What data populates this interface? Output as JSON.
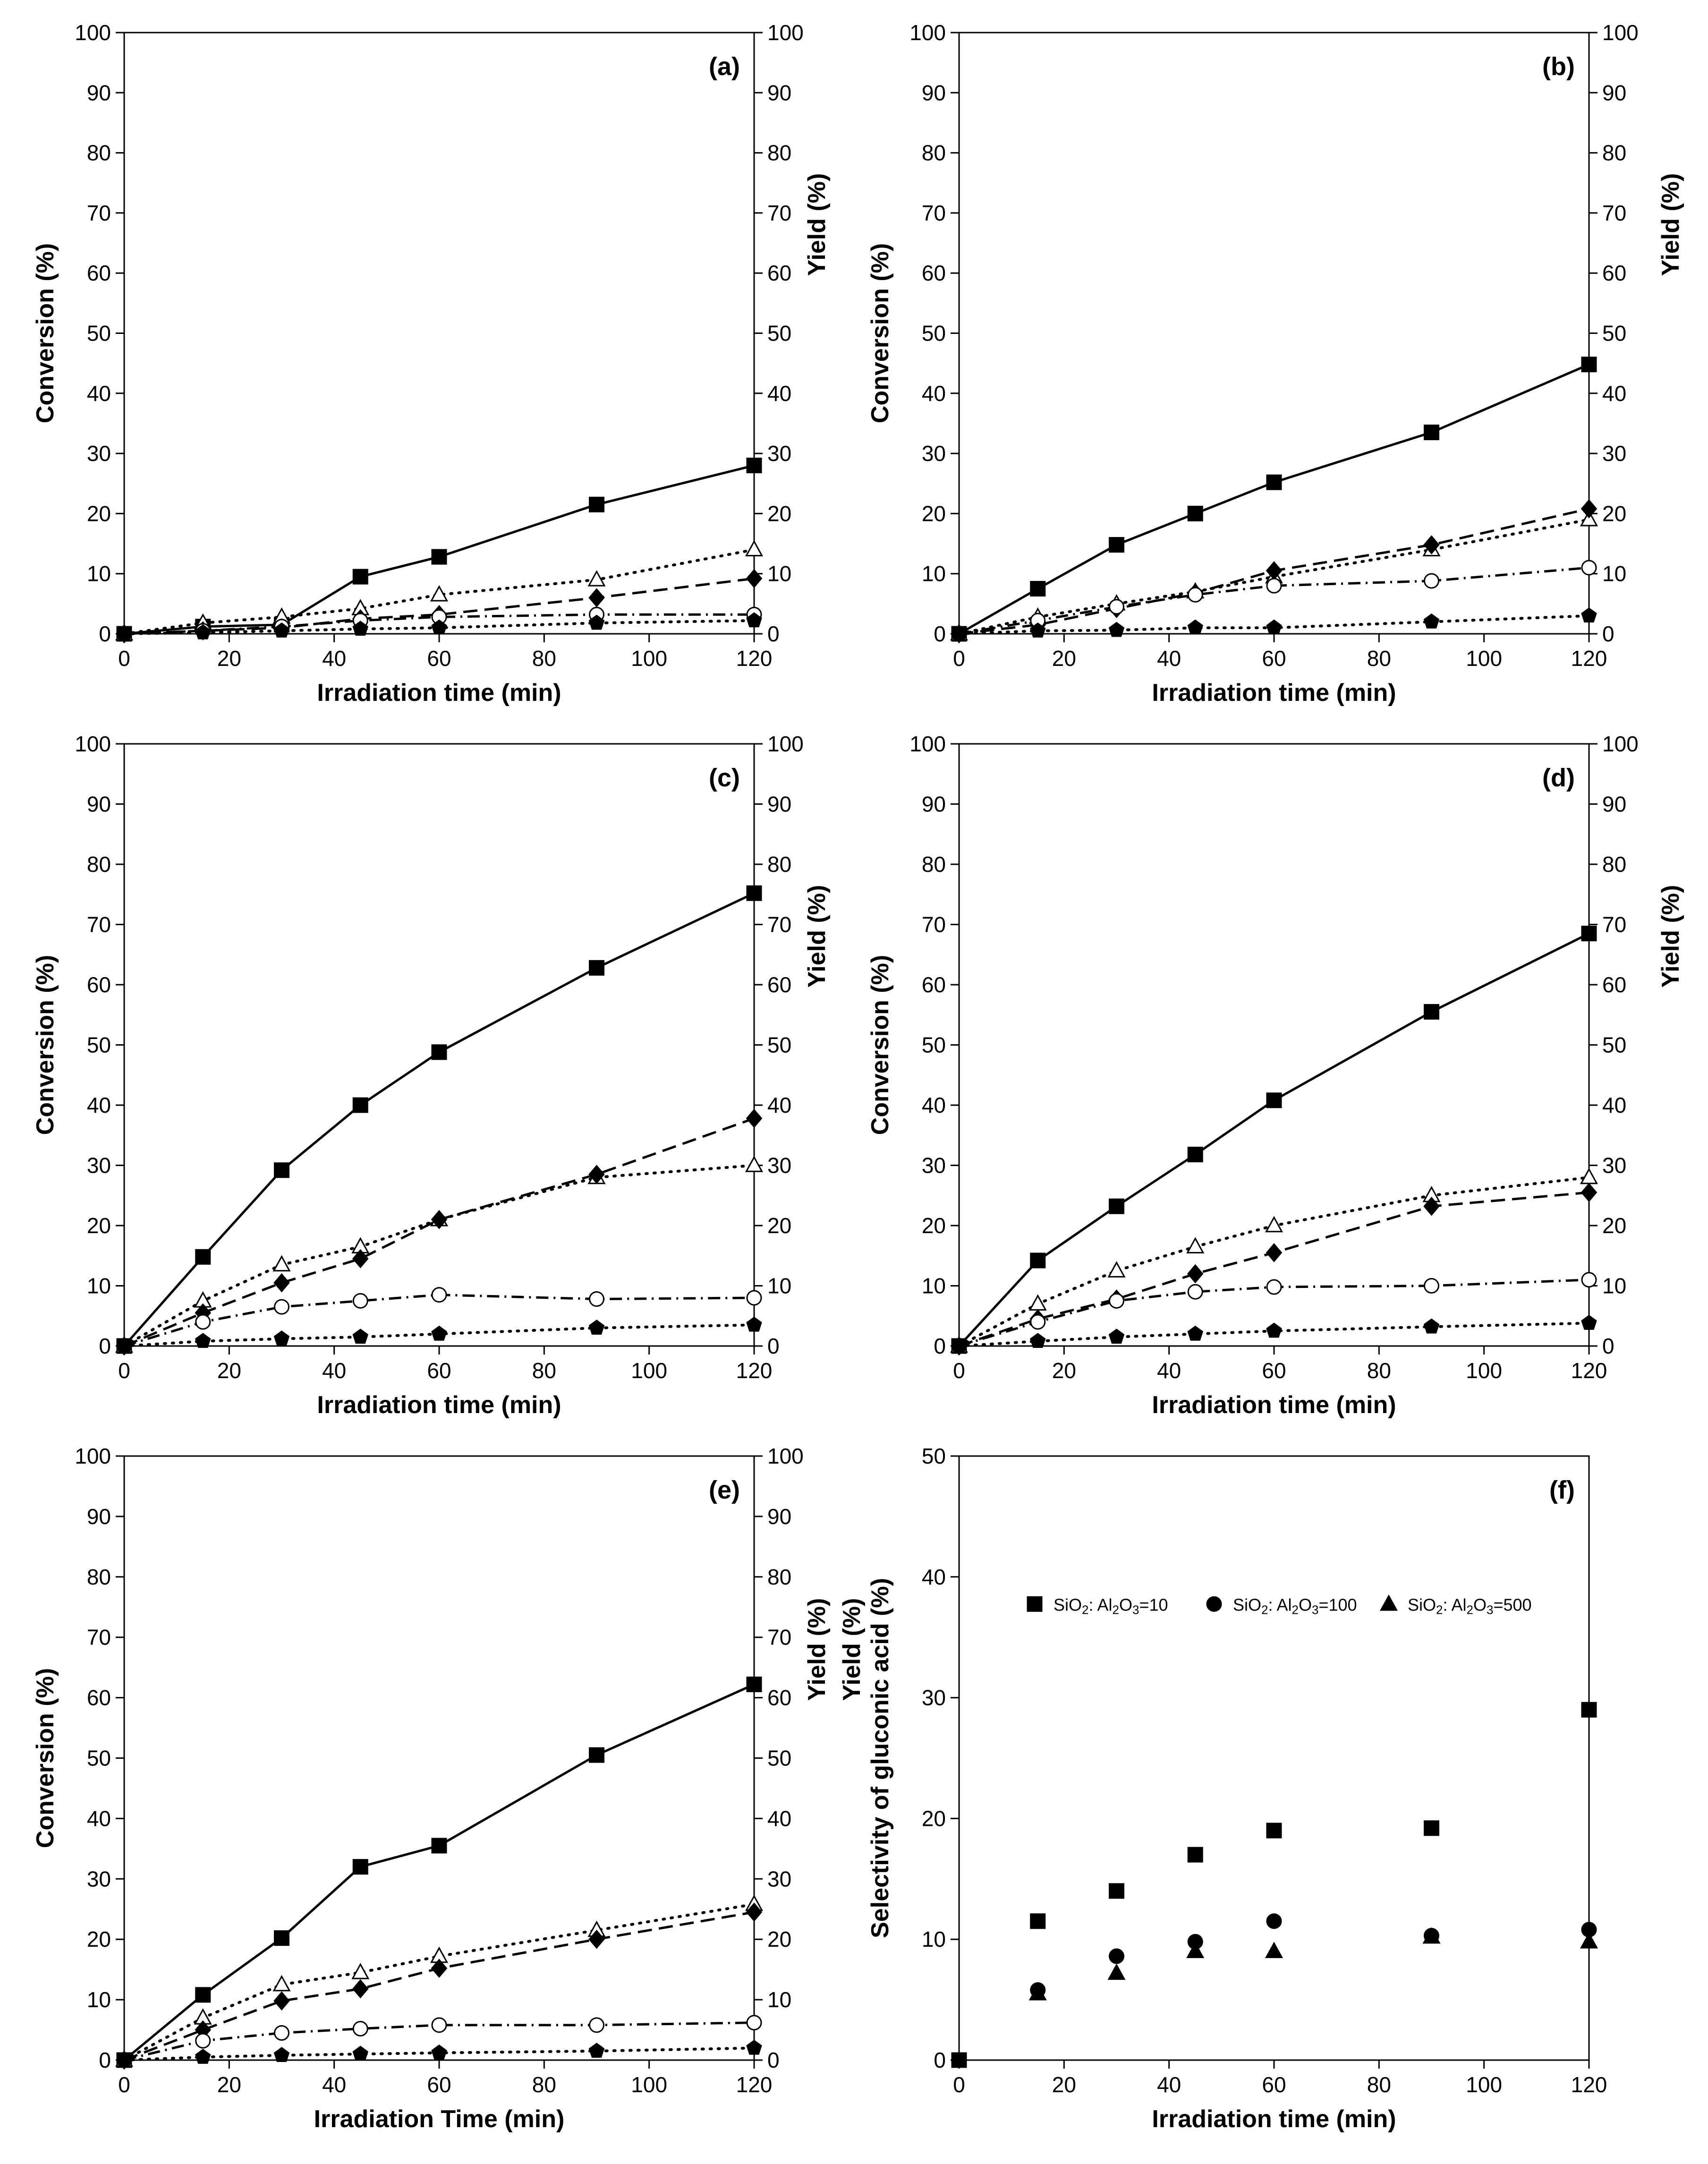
{
  "figure": {
    "background": "#ffffff",
    "ink": "#000000"
  },
  "chart_data": [
    {
      "panel": "(a)",
      "type": "line",
      "xlabel": "Irradiation time (min)",
      "ylabel": "Conversion (%)",
      "ylabel_right": "Yield (%)",
      "xlim": [
        0,
        120
      ],
      "ylim": [
        0,
        100
      ],
      "y2lim": [
        0,
        100
      ],
      "xticks": [
        0,
        20,
        40,
        60,
        80,
        100,
        120
      ],
      "yticks": [
        0,
        10,
        20,
        30,
        40,
        50,
        60,
        70,
        80,
        90,
        100
      ],
      "y2ticks": [
        0,
        10,
        20,
        30,
        40,
        50,
        60,
        70,
        80,
        90,
        100
      ],
      "series": [
        {
          "marker": "filled-square",
          "line": "solid",
          "x": [
            0,
            15,
            30,
            45,
            60,
            90,
            120
          ],
          "values": [
            0,
            1.2,
            1.5,
            9.5,
            12.8,
            21.5,
            28
          ]
        },
        {
          "marker": "open-triangle",
          "line": "dotted",
          "x": [
            0,
            15,
            30,
            45,
            60,
            90,
            120
          ],
          "values": [
            0,
            1.8,
            2.8,
            4.2,
            6.5,
            9,
            14
          ]
        },
        {
          "marker": "filled-diamond",
          "line": "dashed",
          "x": [
            0,
            15,
            30,
            45,
            60,
            90,
            120
          ],
          "values": [
            0,
            0.5,
            1,
            2.5,
            3.2,
            6,
            9.2
          ]
        },
        {
          "marker": "open-circle",
          "line": "dash-dot",
          "x": [
            0,
            15,
            30,
            45,
            60,
            90,
            120
          ],
          "values": [
            0,
            0.5,
            1.2,
            2.2,
            2.8,
            3.2,
            3.2
          ]
        },
        {
          "marker": "filled-pentagon",
          "line": "dotted",
          "x": [
            0,
            15,
            30,
            45,
            60,
            90,
            120
          ],
          "values": [
            0,
            0.2,
            0.5,
            0.8,
            1,
            1.8,
            2.2
          ]
        }
      ]
    },
    {
      "panel": "(b)",
      "type": "line",
      "xlabel": "Irradiation time (min)",
      "ylabel": "Conversion (%)",
      "ylabel_right": "Yield (%)",
      "xlim": [
        0,
        120
      ],
      "ylim": [
        0,
        100
      ],
      "y2lim": [
        0,
        100
      ],
      "xticks": [
        0,
        20,
        40,
        60,
        80,
        100,
        120
      ],
      "yticks": [
        0,
        10,
        20,
        30,
        40,
        50,
        60,
        70,
        80,
        90,
        100
      ],
      "y2ticks": [
        0,
        10,
        20,
        30,
        40,
        50,
        60,
        70,
        80,
        90,
        100
      ],
      "series": [
        {
          "marker": "filled-square",
          "line": "solid",
          "x": [
            0,
            15,
            30,
            45,
            60,
            90,
            120
          ],
          "values": [
            0,
            7.5,
            14.8,
            20,
            25.2,
            33.5,
            44.8
          ]
        },
        {
          "marker": "open-triangle",
          "line": "dotted",
          "x": [
            0,
            15,
            30,
            45,
            60,
            90,
            120
          ],
          "values": [
            0,
            2.8,
            5,
            7,
            9.5,
            14,
            19
          ]
        },
        {
          "marker": "filled-diamond",
          "line": "dashed",
          "x": [
            0,
            15,
            30,
            45,
            60,
            90,
            120
          ],
          "values": [
            0,
            1.5,
            4.2,
            6.8,
            10.5,
            14.8,
            20.8
          ]
        },
        {
          "marker": "open-circle",
          "line": "dash-dot",
          "x": [
            0,
            15,
            30,
            45,
            60,
            90,
            120
          ],
          "values": [
            0,
            2.2,
            4.5,
            6.5,
            8,
            8.8,
            11
          ]
        },
        {
          "marker": "filled-pentagon",
          "line": "dotted",
          "x": [
            0,
            15,
            30,
            45,
            60,
            90,
            120
          ],
          "values": [
            0,
            0.5,
            0.6,
            1,
            1,
            2,
            3
          ]
        }
      ]
    },
    {
      "panel": "(c)",
      "type": "line",
      "xlabel": "Irradiation time (min)",
      "ylabel": "Conversion (%)",
      "ylabel_right": "Yield (%)",
      "xlim": [
        0,
        120
      ],
      "ylim": [
        0,
        100
      ],
      "y2lim": [
        0,
        100
      ],
      "xticks": [
        0,
        20,
        40,
        60,
        80,
        100,
        120
      ],
      "yticks": [
        0,
        10,
        20,
        30,
        40,
        50,
        60,
        70,
        80,
        90,
        100
      ],
      "y2ticks": [
        0,
        10,
        20,
        30,
        40,
        50,
        60,
        70,
        80,
        90,
        100
      ],
      "series": [
        {
          "marker": "filled-square",
          "line": "solid",
          "x": [
            0,
            15,
            30,
            45,
            60,
            90,
            120
          ],
          "values": [
            0,
            14.8,
            29.2,
            40,
            48.8,
            62.8,
            75.2
          ]
        },
        {
          "marker": "open-triangle",
          "line": "dotted",
          "x": [
            0,
            15,
            30,
            45,
            60,
            90,
            120
          ],
          "values": [
            0,
            7.5,
            13.5,
            16.5,
            21,
            28,
            30
          ]
        },
        {
          "marker": "filled-diamond",
          "line": "dashed",
          "x": [
            0,
            15,
            30,
            45,
            60,
            90,
            120
          ],
          "values": [
            0,
            5.5,
            10.5,
            14.5,
            21,
            28.5,
            37.8
          ]
        },
        {
          "marker": "open-circle",
          "line": "dash-dot",
          "x": [
            0,
            15,
            30,
            45,
            60,
            90,
            120
          ],
          "values": [
            0,
            4,
            6.5,
            7.5,
            8.5,
            7.8,
            8
          ]
        },
        {
          "marker": "filled-pentagon",
          "line": "dotted",
          "x": [
            0,
            15,
            30,
            45,
            60,
            90,
            120
          ],
          "values": [
            0,
            0.8,
            1.2,
            1.5,
            2,
            3,
            3.5
          ]
        }
      ]
    },
    {
      "panel": "(d)",
      "type": "line",
      "xlabel": "Irradiation time (min)",
      "ylabel": "Conversion (%)",
      "ylabel_right": "Yield (%)",
      "xlim": [
        0,
        120
      ],
      "ylim": [
        0,
        100
      ],
      "y2lim": [
        0,
        100
      ],
      "xticks": [
        0,
        20,
        40,
        60,
        80,
        100,
        120
      ],
      "yticks": [
        0,
        10,
        20,
        30,
        40,
        50,
        60,
        70,
        80,
        90,
        100
      ],
      "y2ticks": [
        0,
        10,
        20,
        30,
        40,
        50,
        60,
        70,
        80,
        90,
        100
      ],
      "series": [
        {
          "marker": "filled-square",
          "line": "solid",
          "x": [
            0,
            15,
            30,
            45,
            60,
            90,
            120
          ],
          "values": [
            0,
            14.2,
            23.2,
            31.8,
            40.8,
            55.5,
            68.5
          ]
        },
        {
          "marker": "open-triangle",
          "line": "dotted",
          "x": [
            0,
            15,
            30,
            45,
            60,
            90,
            120
          ],
          "values": [
            0,
            7,
            12.5,
            16.5,
            20,
            25,
            28
          ]
        },
        {
          "marker": "filled-diamond",
          "line": "dashed",
          "x": [
            0,
            15,
            30,
            45,
            60,
            90,
            120
          ],
          "values": [
            0,
            4.5,
            7.8,
            12,
            15.5,
            23.2,
            25.5
          ]
        },
        {
          "marker": "open-circle",
          "line": "dash-dot",
          "x": [
            0,
            15,
            30,
            45,
            60,
            90,
            120
          ],
          "values": [
            0,
            4,
            7.5,
            9,
            9.8,
            10,
            11
          ]
        },
        {
          "marker": "filled-pentagon",
          "line": "dotted",
          "x": [
            0,
            15,
            30,
            45,
            60,
            90,
            120
          ],
          "values": [
            0,
            0.8,
            1.5,
            2,
            2.5,
            3.2,
            3.8
          ]
        }
      ]
    },
    {
      "panel": "(e)",
      "type": "line",
      "xlabel": "Irradiation Time (min)",
      "ylabel": "Conversion (%)",
      "ylabel_right": "Yield (%)",
      "xlim": [
        0,
        120
      ],
      "ylim": [
        0,
        100
      ],
      "y2lim": [
        0,
        100
      ],
      "xticks": [
        0,
        20,
        40,
        60,
        80,
        100,
        120
      ],
      "yticks": [
        0,
        10,
        20,
        30,
        40,
        50,
        60,
        70,
        80,
        90,
        100
      ],
      "y2ticks": [
        0,
        10,
        20,
        30,
        40,
        50,
        60,
        70,
        80,
        90,
        100
      ],
      "series": [
        {
          "marker": "filled-square",
          "line": "solid",
          "x": [
            0,
            15,
            30,
            45,
            60,
            90,
            120
          ],
          "values": [
            0,
            10.8,
            20.2,
            32,
            35.5,
            50.5,
            62.2
          ]
        },
        {
          "marker": "open-triangle",
          "line": "dotted",
          "x": [
            0,
            15,
            30,
            45,
            60,
            90,
            120
          ],
          "values": [
            0,
            7,
            12.5,
            14.5,
            17.2,
            21.5,
            25.8
          ]
        },
        {
          "marker": "filled-diamond",
          "line": "dashed",
          "x": [
            0,
            15,
            30,
            45,
            60,
            90,
            120
          ],
          "values": [
            0,
            5,
            9.8,
            11.8,
            15.2,
            20,
            24.5
          ]
        },
        {
          "marker": "open-circle",
          "line": "dash-dot",
          "x": [
            0,
            15,
            30,
            45,
            60,
            90,
            120
          ],
          "values": [
            0,
            3.2,
            4.5,
            5.2,
            5.8,
            5.8,
            6.2
          ]
        },
        {
          "marker": "filled-pentagon",
          "line": "dotted",
          "x": [
            0,
            15,
            30,
            45,
            60,
            90,
            120
          ],
          "values": [
            0,
            0.5,
            0.8,
            1,
            1.2,
            1.5,
            2
          ]
        }
      ]
    },
    {
      "panel": "(f)",
      "type": "scatter",
      "xlabel": "Irradiation time (min)",
      "ylabel": "Selectivity of gluconic acid (%)",
      "ylabel_behind": "Yield (%)",
      "xlim": [
        0,
        120
      ],
      "ylim": [
        0,
        50
      ],
      "xticks": [
        0,
        20,
        40,
        60,
        80,
        100,
        120
      ],
      "yticks": [
        0,
        10,
        20,
        30,
        40,
        50
      ],
      "legend_position": "top",
      "series": [
        {
          "name": "SiO2: Al2O3=10",
          "legend_parts": [
            "SiO",
            "2",
            ": Al",
            "2",
            "O",
            "3",
            "=10"
          ],
          "marker": "filled-square",
          "x": [
            0,
            15,
            30,
            45,
            60,
            90,
            120
          ],
          "values": [
            0,
            11.5,
            14,
            17,
            19,
            19.2,
            29
          ]
        },
        {
          "name": "SiO2: Al2O3=100",
          "legend_parts": [
            "SiO",
            "2",
            ": Al",
            "2",
            "O",
            "3",
            "=100"
          ],
          "marker": "filled-circle",
          "x": [
            15,
            30,
            45,
            60,
            90,
            120
          ],
          "values": [
            5.8,
            8.6,
            9.8,
            11.5,
            10.3,
            10.8
          ]
        },
        {
          "name": "SiO2: Al2O3=500",
          "legend_parts": [
            "SiO",
            "2",
            ": Al",
            "2",
            "O",
            "3",
            "=500"
          ],
          "marker": "filled-triangle",
          "x": [
            15,
            30,
            45,
            60,
            90,
            120
          ],
          "values": [
            5.5,
            7.2,
            9,
            9,
            10.2,
            9.8
          ]
        }
      ]
    }
  ]
}
